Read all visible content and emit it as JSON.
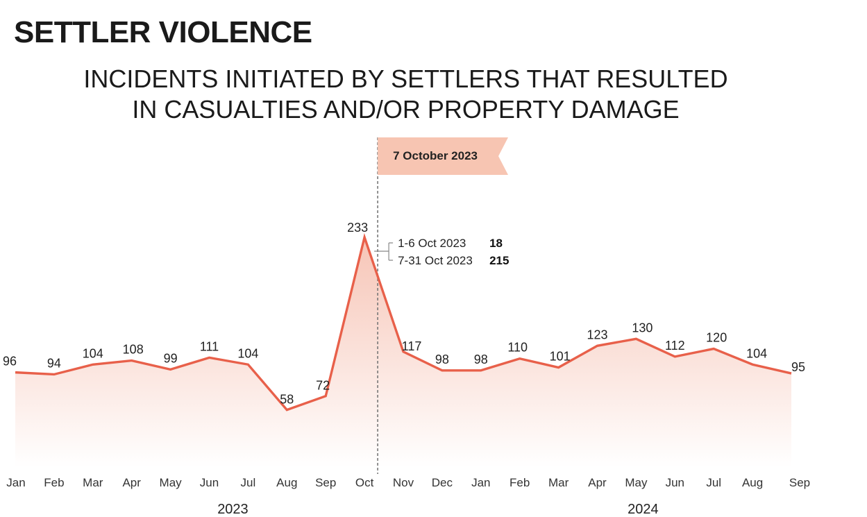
{
  "header": {
    "title": "SETTLER VIOLENCE"
  },
  "chart_data": {
    "type": "area",
    "title_line1": "INCIDENTS INITIATED BY SETTLERS THAT RESULTED",
    "title_line2": "IN CASUALTIES AND/OR PROPERTY DAMAGE",
    "categories": [
      "Jan",
      "Feb",
      "Mar",
      "Apr",
      "May",
      "Jun",
      "Jul",
      "Aug",
      "Sep",
      "Oct",
      "Nov",
      "Dec",
      "Jan",
      "Feb",
      "Mar",
      "Apr",
      "May",
      "Jun",
      "Jul",
      "Aug",
      "Sep"
    ],
    "values": [
      96,
      94,
      104,
      108,
      99,
      111,
      104,
      58,
      72,
      233,
      117,
      98,
      98,
      110,
      101,
      123,
      130,
      112,
      120,
      104,
      95
    ],
    "years": [
      {
        "label": "2023",
        "start_index": 0,
        "end_index": 11
      },
      {
        "label": "2024",
        "start_index": 12,
        "end_index": 20
      }
    ],
    "ylim": [
      0,
      250
    ],
    "grid": false,
    "colors": {
      "line": "#e8604a",
      "fill_top": "#f6c2b3",
      "banner": "#f7c5b2",
      "marker": "#777777"
    },
    "event_marker": {
      "label": "7 October 2023",
      "category_index": 9
    },
    "oct_split": [
      {
        "label": "1-6 Oct 2023",
        "value": "18"
      },
      {
        "label": "7-31 Oct 2023",
        "value": "215"
      }
    ]
  }
}
